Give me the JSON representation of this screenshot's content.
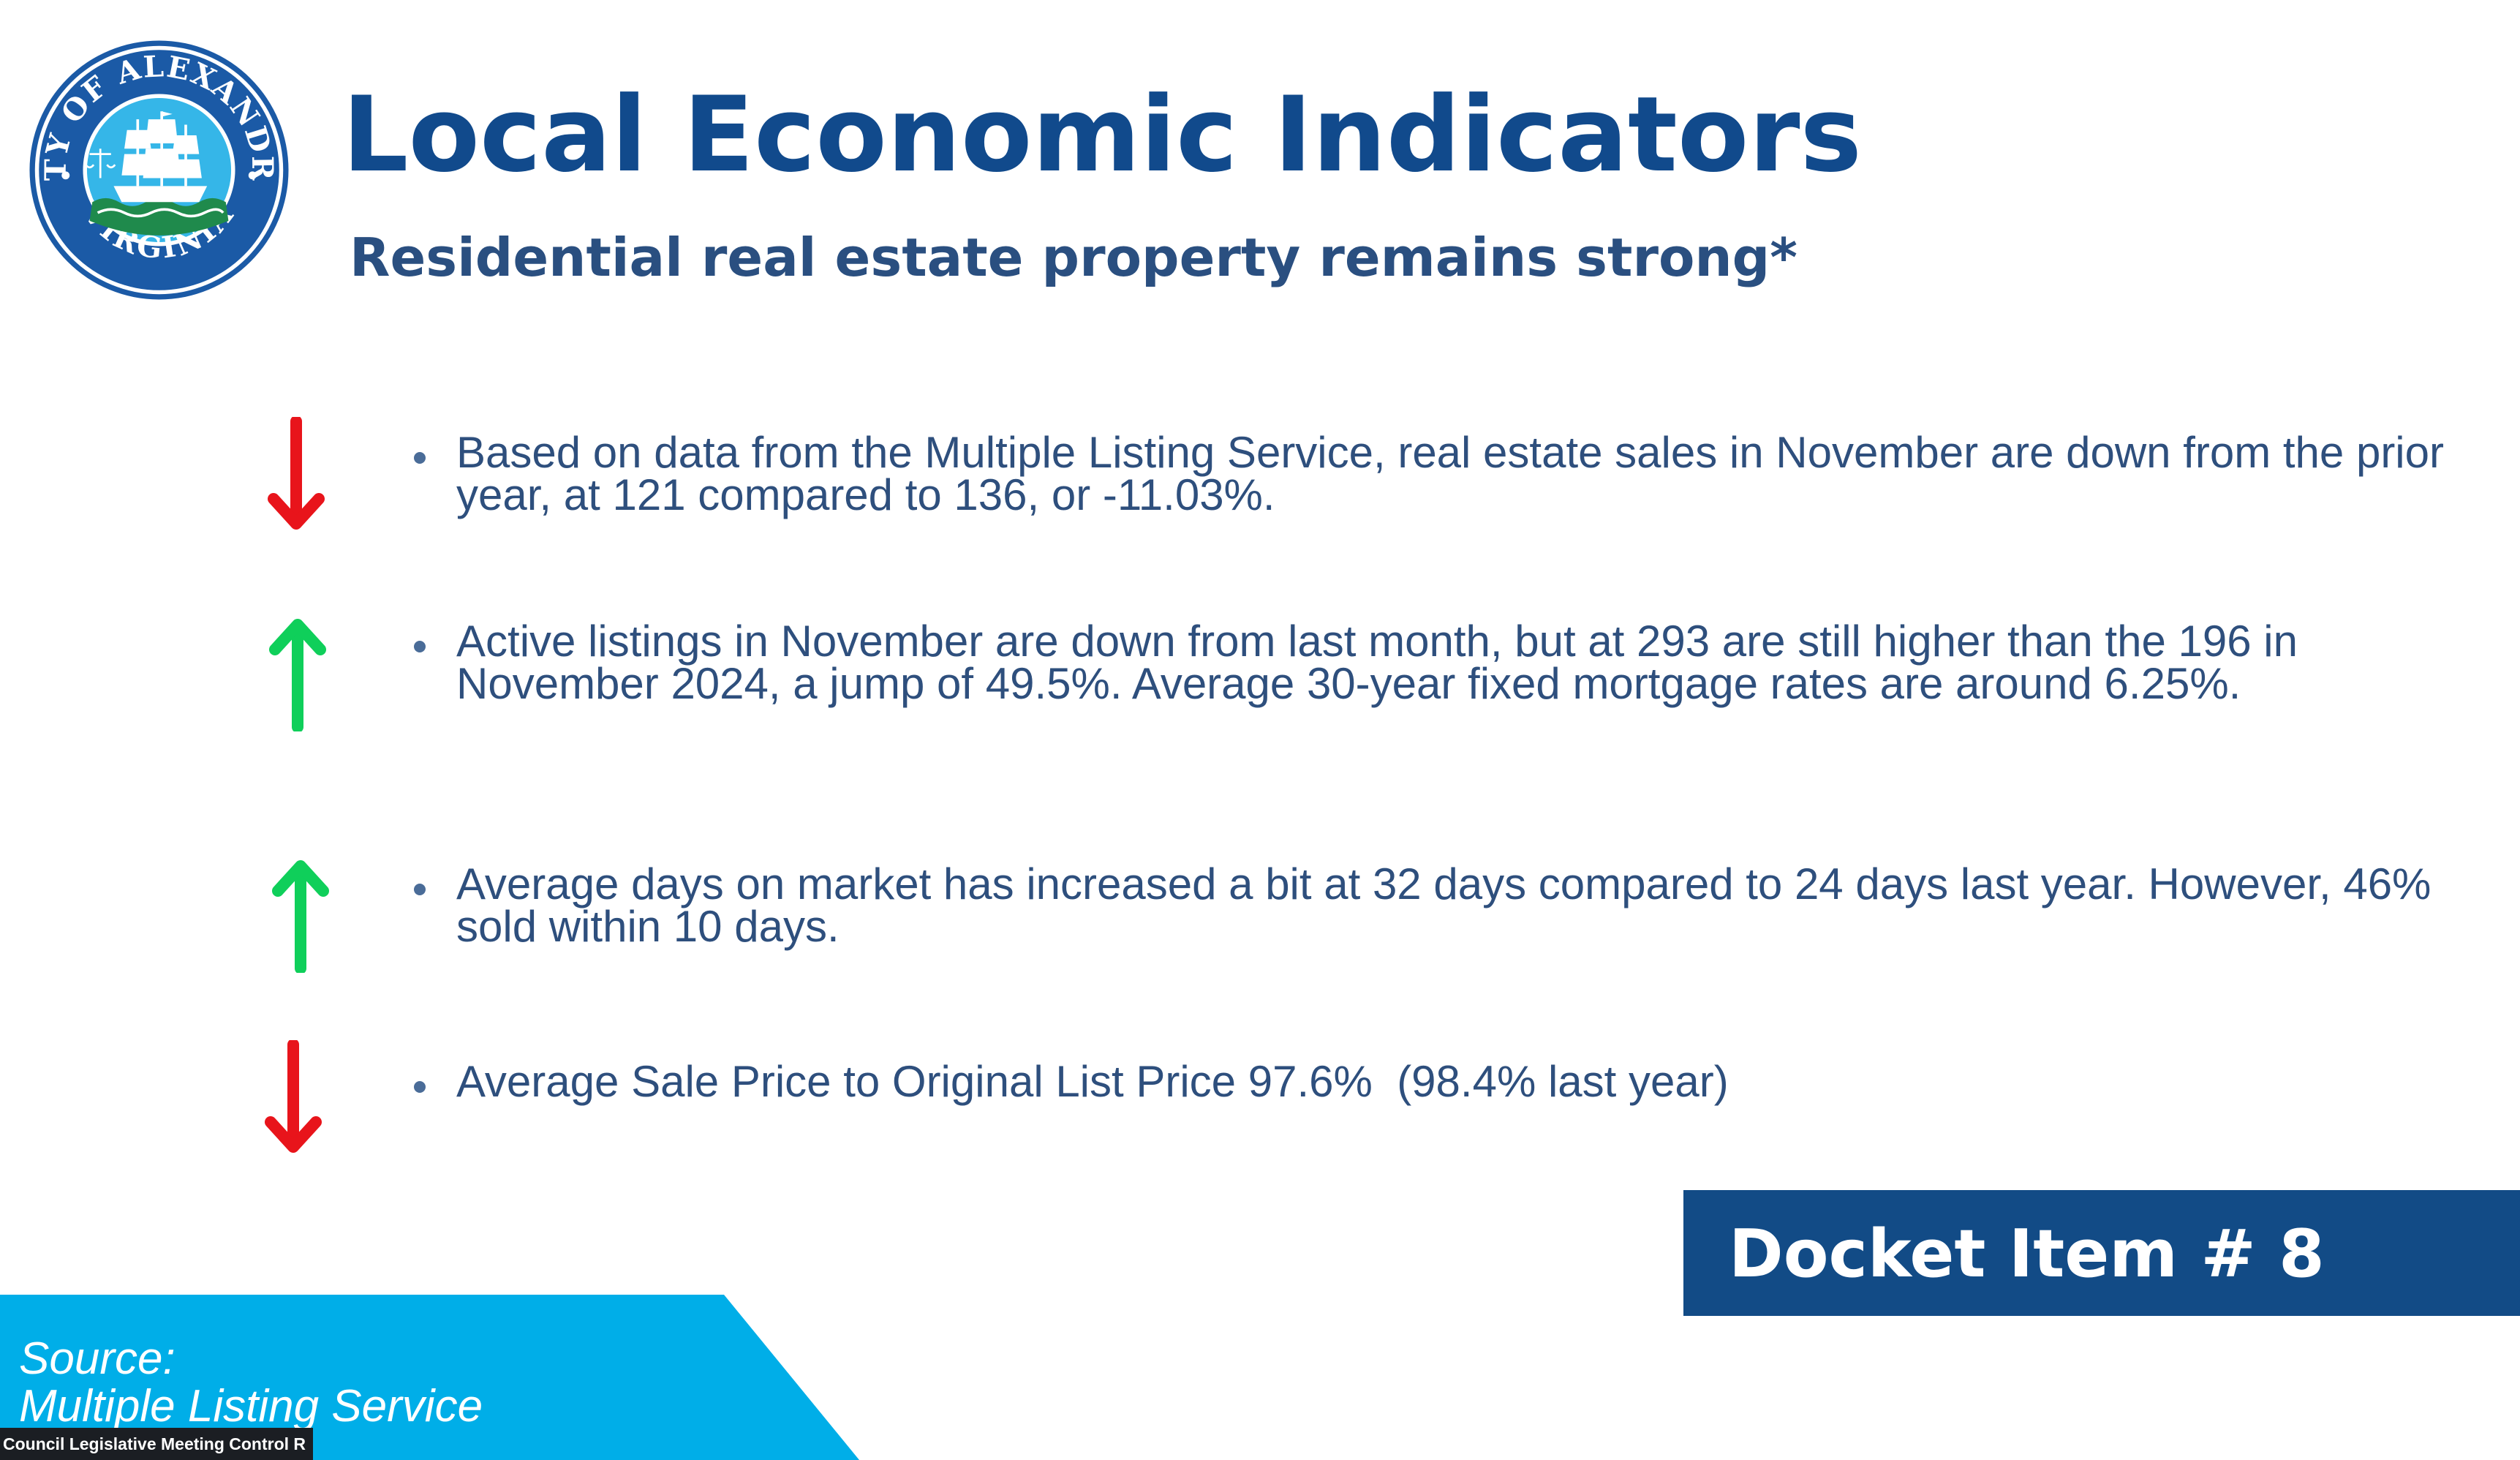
{
  "slide": {
    "seal": {
      "top_text": "CITY OF ALEXANDRIA",
      "bottom_text": "VIRGINIA",
      "icon": "city-seal-ship-icon"
    },
    "title": "Local Economic Indicators",
    "subtitle": "Residential real estate property remains strong*",
    "indicators": [
      {
        "direction": "down",
        "arrow_icon": "arrow-down-icon",
        "text": "Based on data from the Multiple Listing Service, real estate sales in November are down from the prior year, at 121 compared to 136, or -11.03%."
      },
      {
        "direction": "up",
        "arrow_icon": "arrow-up-icon",
        "text": "Active listings in November are down from last month, but at 293 are still higher than the 196 in November 2024, a jump of 49.5%. Average 30-year fixed mortgage rates are around 6.25%."
      },
      {
        "direction": "up",
        "arrow_icon": "arrow-up-icon",
        "text": "Average days on market has increased a bit at 32 days compared to 24 days last year. However, 46% sold within 10 days."
      },
      {
        "direction": "down",
        "arrow_icon": "arrow-down-icon",
        "text": "Average Sale Price to Original List Price 97.6%  (98.4% last year)"
      }
    ],
    "docket": "Docket Item # 8",
    "source": {
      "label": "Source:",
      "name": "Multiple Listing Service"
    }
  },
  "meeting_bar": {
    "label": "Council Legislative Meeting Control R"
  },
  "colors": {
    "title": "#114a8c",
    "subtitle": "#2a4f80",
    "body_text": "#2e4f7d",
    "arrow_up": "#0fcf5a",
    "arrow_down": "#e8141b",
    "docket_bg": "#124b86",
    "source_bg": "#00aee8",
    "seal_blue": "#1b5aa6",
    "seal_light": "#35b6e8",
    "seal_green": "#1f8a4c"
  }
}
